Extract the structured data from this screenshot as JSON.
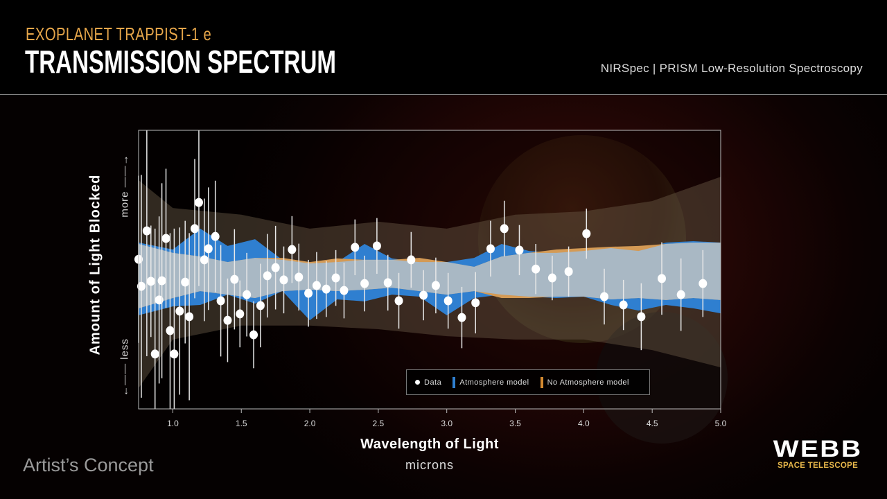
{
  "header": {
    "subtitle": "EXOPLANET TRAPPIST-1 e",
    "title": "TRANSMISSION SPECTRUM",
    "instrument": "NIRSpec | PRISM Low-Resolution Spectroscopy"
  },
  "footer": {
    "artist_concept": "Artist’s Concept",
    "logo_main": "WEBB",
    "logo_sub": "SPACE TELESCOPE"
  },
  "colors": {
    "atmosphere": "#2f7fd0",
    "no_atmosphere": "#d49a55",
    "overlap": "#a9b8c4",
    "data": "#ffffff",
    "accent": "#e6a64a"
  },
  "chart_data": {
    "type": "scatter",
    "title": "TRANSMISSION SPECTRUM",
    "xlabel": "Wavelength of Light",
    "xunits": "microns",
    "ylabel": "Amount of Light Blocked",
    "ylabel_more": "more",
    "ylabel_less": "less",
    "xlim": [
      0.75,
      5.0
    ],
    "ylim": [
      0,
      100
    ],
    "xticks": [
      "1.0",
      "1.5",
      "2.0",
      "2.5",
      "3.0",
      "3.5",
      "4.0",
      "4.5",
      "5.0"
    ],
    "xtick_values": [
      1.0,
      1.5,
      2.0,
      2.5,
      3.0,
      3.5,
      4.0,
      4.5,
      5.0
    ],
    "legend": {
      "placement": "bottom-right",
      "data": "Data",
      "atmosphere": "Atmosphere model",
      "no_atmosphere": "No Atmosphere model"
    },
    "data": {
      "x": [
        0.75,
        0.77,
        0.81,
        0.84,
        0.87,
        0.9,
        0.92,
        0.95,
        0.98,
        1.01,
        1.05,
        1.09,
        1.12,
        1.16,
        1.19,
        1.23,
        1.26,
        1.31,
        1.35,
        1.4,
        1.45,
        1.49,
        1.54,
        1.59,
        1.64,
        1.69,
        1.75,
        1.81,
        1.87,
        1.92,
        1.99,
        2.05,
        2.12,
        2.19,
        2.25,
        2.33,
        2.4,
        2.49,
        2.57,
        2.65,
        2.74,
        2.83,
        2.92,
        3.01,
        3.11,
        3.21,
        3.32,
        3.42,
        3.53,
        3.65,
        3.77,
        3.89,
        4.02,
        4.15,
        4.29,
        4.42,
        4.57,
        4.71,
        4.87
      ],
      "y": [
        53.7,
        44.0,
        63.9,
        45.8,
        19.7,
        39.1,
        46.0,
        61.2,
        28.1,
        19.7,
        35.1,
        45.5,
        33.1,
        64.7,
        74.1,
        53.5,
        57.5,
        61.9,
        38.8,
        31.8,
        46.5,
        34.1,
        41.0,
        26.6,
        37.1,
        47.8,
        50.7,
        46.3,
        57.2,
        47.3,
        41.5,
        44.3,
        43.0,
        47.0,
        42.5,
        58.0,
        45.0,
        58.5,
        45.3,
        38.8,
        53.5,
        40.8,
        44.3,
        38.8,
        32.8,
        38.1,
        57.5,
        64.7,
        57.0,
        50.2,
        47.0,
        49.3,
        62.9,
        40.3,
        37.3,
        33.1,
        46.8,
        41.0,
        45.0
      ],
      "err": [
        30,
        40,
        45,
        20,
        45,
        30,
        35,
        25,
        35,
        45,
        30,
        22,
        30,
        25,
        30,
        22,
        22,
        20,
        20,
        15,
        18,
        12,
        15,
        12,
        15,
        15,
        15,
        12,
        12,
        12,
        12,
        12,
        10,
        10,
        10,
        10,
        10,
        10,
        10,
        10,
        10,
        9,
        10,
        10,
        11,
        11,
        10,
        10,
        9,
        9,
        8,
        9,
        9,
        10,
        9,
        12,
        13,
        13,
        12
      ]
    },
    "models": {
      "x": [
        0.75,
        1.0,
        1.2,
        1.4,
        1.6,
        1.8,
        2.0,
        2.2,
        2.4,
        2.6,
        2.8,
        3.0,
        3.2,
        3.4,
        3.6,
        3.8,
        4.0,
        4.2,
        4.4,
        4.6,
        4.8,
        5.0
      ],
      "atmosphere_upper": [
        59.7,
        57.2,
        64.7,
        58.5,
        60.9,
        53.5,
        52.2,
        52.7,
        59.2,
        54.0,
        52.7,
        52.7,
        54.2,
        59.2,
        56.7,
        56.0,
        56.7,
        57.7,
        56.7,
        59.7,
        60.2,
        59.7
      ],
      "atmosphere_lower": [
        33.6,
        36.8,
        37.3,
        41.0,
        37.8,
        42.3,
        31.8,
        39.3,
        38.6,
        41.0,
        40.3,
        33.6,
        39.8,
        41.0,
        40.3,
        39.8,
        40.3,
        37.3,
        35.3,
        37.3,
        36.1,
        34.3
      ],
      "no_atmosphere_upper": [
        59.2,
        56.0,
        54.7,
        52.7,
        54.2,
        54.2,
        52.7,
        54.0,
        53.5,
        53.5,
        54.2,
        52.7,
        51.0,
        54.7,
        56.0,
        57.2,
        57.7,
        58.2,
        58.5,
        59.2,
        59.7,
        59.7
      ],
      "no_atmosphere_lower": [
        36.1,
        39.8,
        42.3,
        41.0,
        39.8,
        42.3,
        42.8,
        42.3,
        42.8,
        43.5,
        42.3,
        41.0,
        42.3,
        39.8,
        39.8,
        40.3,
        40.3,
        39.3,
        39.8,
        39.1,
        39.8,
        39.1
      ]
    },
    "outer_band": {
      "x": [
        0.75,
        1.0,
        1.5,
        2.0,
        2.5,
        3.0,
        3.5,
        4.0,
        4.5,
        5.0
      ],
      "upper": [
        82.1,
        72.1,
        69.7,
        64.7,
        67.2,
        64.7,
        69.7,
        70.9,
        74.6,
        83.3
      ],
      "lower": [
        7.5,
        24.9,
        29.9,
        29.9,
        28.6,
        26.1,
        24.9,
        24.9,
        21.1,
        14.9
      ]
    }
  }
}
